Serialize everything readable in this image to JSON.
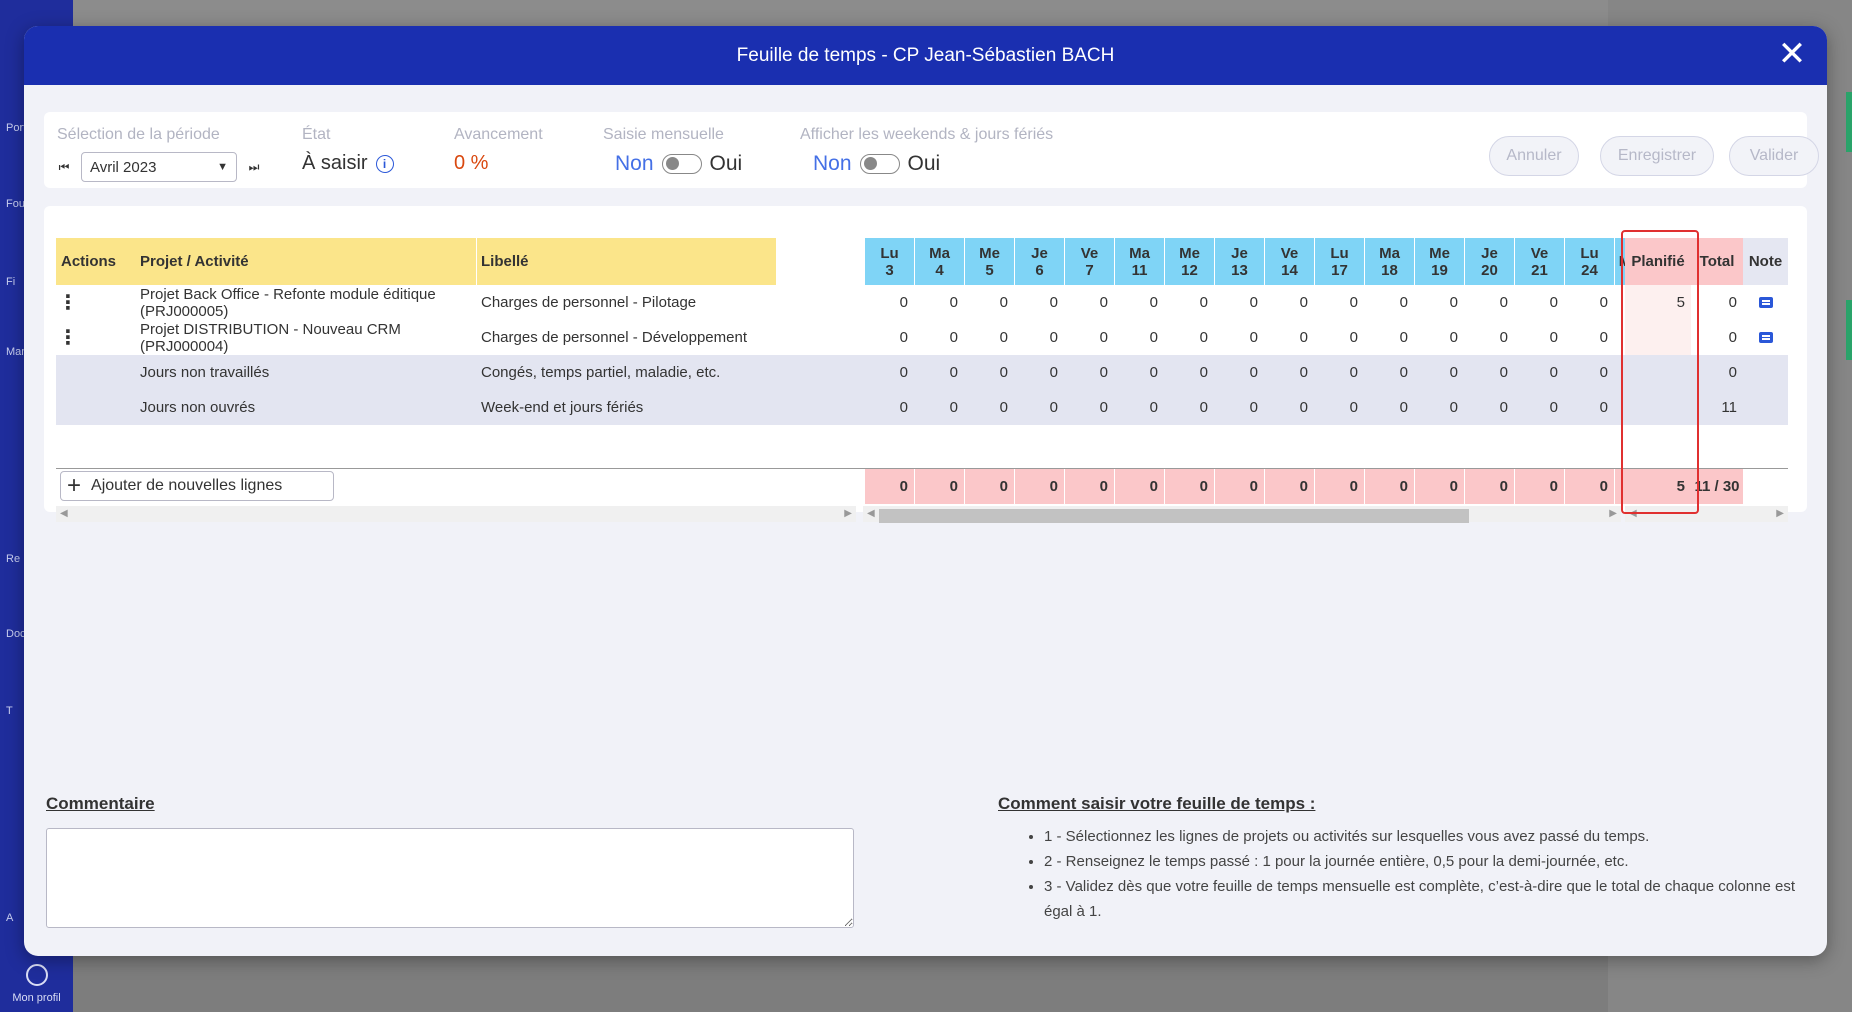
{
  "modal": {
    "title": "Feuille de temps - CP Jean-Sébastien BACH",
    "close": "✕"
  },
  "background": {
    "sidebar_items": [
      "Port",
      "Fou",
      "Fi",
      "Man",
      "Re",
      "Doc",
      "T",
      "A"
    ],
    "profile_label": "Mon profil"
  },
  "toolbar": {
    "period_label": "Sélection de la période",
    "period_value": "Avril 2023",
    "state_label": "État",
    "state_value": "À saisir",
    "progress_label": "Avancement",
    "progress_value": "0 %",
    "monthly_label": "Saisie mensuelle",
    "monthly_off": "Non",
    "monthly_on": "Oui",
    "weekends_label": "Afficher les weekends & jours fériés",
    "weekends_off": "Non",
    "weekends_on": "Oui",
    "cancel": "Annuler",
    "save": "Enregistrer",
    "validate": "Valider",
    "progress_color": "#d9480f",
    "accent_color": "#1a2fb0"
  },
  "table": {
    "headers": {
      "actions": "Actions",
      "project": "Projet / Activité",
      "label": "Libellé",
      "planned": "Planifié",
      "total": "Total",
      "note": "Note"
    },
    "days": [
      {
        "d": "Lu",
        "n": "3"
      },
      {
        "d": "Ma",
        "n": "4"
      },
      {
        "d": "Me",
        "n": "5"
      },
      {
        "d": "Je",
        "n": "6"
      },
      {
        "d": "Ve",
        "n": "7"
      },
      {
        "d": "Ma",
        "n": "11"
      },
      {
        "d": "Me",
        "n": "12"
      },
      {
        "d": "Je",
        "n": "13"
      },
      {
        "d": "Ve",
        "n": "14"
      },
      {
        "d": "Lu",
        "n": "17"
      },
      {
        "d": "Ma",
        "n": "18"
      },
      {
        "d": "Me",
        "n": "19"
      },
      {
        "d": "Je",
        "n": "20"
      },
      {
        "d": "Ve",
        "n": "21"
      },
      {
        "d": "Lu",
        "n": "24"
      },
      {
        "d": "M",
        "n": ""
      }
    ],
    "rows": [
      {
        "project": "Projet Back Office - Refonte module éditique (PRJ000005)",
        "label": "Charges de personnel - Pilotage",
        "values": [
          "0",
          "0",
          "0",
          "0",
          "0",
          "0",
          "0",
          "0",
          "0",
          "0",
          "0",
          "0",
          "0",
          "0",
          "0"
        ],
        "planned": "5",
        "total": "0",
        "note": true,
        "actions": true,
        "gray": false
      },
      {
        "project": "Projet DISTRIBUTION - Nouveau CRM (PRJ000004)",
        "label": "Charges de personnel - Développement",
        "values": [
          "0",
          "0",
          "0",
          "0",
          "0",
          "0",
          "0",
          "0",
          "0",
          "0",
          "0",
          "0",
          "0",
          "0",
          "0"
        ],
        "planned": "",
        "total": "0",
        "note": true,
        "actions": true,
        "gray": false
      },
      {
        "project": "Jours non travaillés",
        "label": "Congés, temps partiel, maladie, etc.",
        "values": [
          "0",
          "0",
          "0",
          "0",
          "0",
          "0",
          "0",
          "0",
          "0",
          "0",
          "0",
          "0",
          "0",
          "0",
          "0"
        ],
        "planned": "",
        "total": "0",
        "note": false,
        "actions": false,
        "gray": true
      },
      {
        "project": "Jours non ouvrés",
        "label": "Week-end et jours fériés",
        "values": [
          "0",
          "0",
          "0",
          "0",
          "0",
          "0",
          "0",
          "0",
          "0",
          "0",
          "0",
          "0",
          "0",
          "0",
          "0"
        ],
        "planned": "",
        "total": "11",
        "note": false,
        "actions": false,
        "gray": true
      }
    ],
    "footer": {
      "add_label": "Ajouter de nouvelles lignes",
      "values": [
        "0",
        "0",
        "0",
        "0",
        "0",
        "0",
        "0",
        "0",
        "0",
        "0",
        "0",
        "0",
        "0",
        "0",
        "0"
      ],
      "planned": "5",
      "total": "11 / 30"
    }
  },
  "comment": {
    "label": "Commentaire",
    "value": ""
  },
  "help": {
    "title": "Comment saisir votre feuille de temps :",
    "items": [
      "1 - Sélectionnez les lignes de projets ou activités sur lesquelles vous avez passé du temps.",
      "2 - Renseignez le temps passé : 1 pour la journée entière, 0,5 pour la demi-journée, etc.",
      "3 - Validez dès que votre feuille de temps mensuelle est complète, c’est-à-dire que le total de chaque colonne est égal à 1."
    ]
  }
}
